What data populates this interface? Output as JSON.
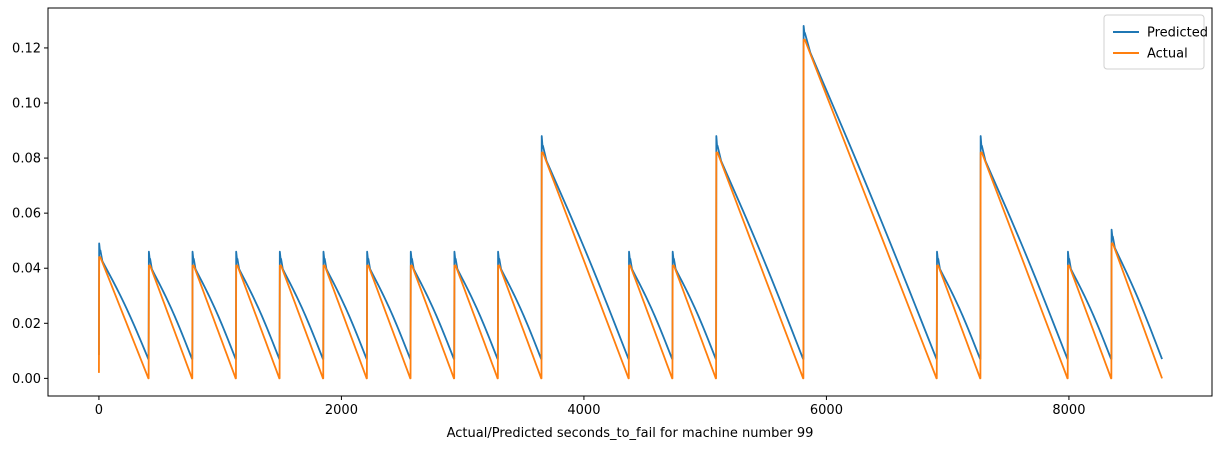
{
  "chart_data": {
    "type": "line",
    "title": "",
    "xlabel": "Actual/Predicted seconds_to_fail for machine number 99",
    "ylabel": "",
    "xlim": [
      -420,
      9180
    ],
    "ylim": [
      -0.0064,
      0.1345
    ],
    "xticks": [
      0,
      2000,
      4000,
      6000,
      8000
    ],
    "xtick_labels": [
      "0",
      "2000",
      "4000",
      "6000",
      "8000"
    ],
    "yticks": [
      0.0,
      0.02,
      0.04,
      0.06,
      0.08,
      0.1,
      0.12
    ],
    "ytick_labels": [
      "0.00",
      "0.02",
      "0.04",
      "0.06",
      "0.08",
      "0.10",
      "0.12"
    ],
    "grid": false,
    "legend": "top-right",
    "cycle_starts_x": [
      0,
      410,
      770,
      1130,
      1490,
      1850,
      2210,
      2570,
      2930,
      3290,
      3650,
      4370,
      4730,
      5090,
      5810,
      6910,
      7270,
      7990,
      8350,
      8770
    ],
    "series": [
      {
        "name": "Predicted",
        "color": "#1f77b4",
        "offset": 0.007,
        "spike_heights": [
          0.049,
          0.046,
          0.046,
          0.046,
          0.046,
          0.046,
          0.046,
          0.046,
          0.046,
          0.046,
          0.088,
          0.046,
          0.046,
          0.088,
          0.128,
          0.046,
          0.088,
          0.046,
          0.054
        ]
      },
      {
        "name": "Actual",
        "color": "#ff7f0e",
        "offset": 0.0,
        "spike_heights": [
          0.044,
          0.041,
          0.041,
          0.041,
          0.041,
          0.041,
          0.041,
          0.041,
          0.041,
          0.041,
          0.082,
          0.041,
          0.041,
          0.082,
          0.123,
          0.041,
          0.082,
          0.041,
          0.049
        ]
      }
    ],
    "cycle_peaks": [
      0.044,
      0.041,
      0.041,
      0.041,
      0.041,
      0.041,
      0.041,
      0.041,
      0.041,
      0.041,
      0.082,
      0.041,
      0.041,
      0.082,
      0.123,
      0.041,
      0.082,
      0.041,
      0.049
    ]
  }
}
